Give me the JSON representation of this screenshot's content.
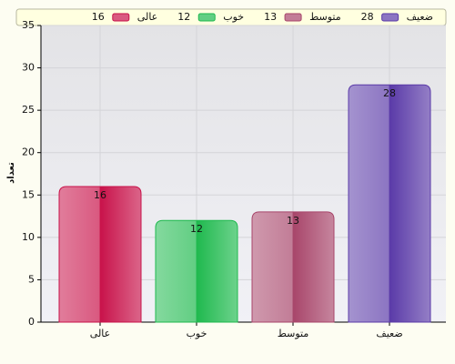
{
  "chart_data": {
    "type": "bar",
    "ylabel": "تعداد",
    "categories": [
      "عالی",
      "خوب",
      "متوسط",
      "ضعیف"
    ],
    "values": [
      16,
      12,
      13,
      28
    ],
    "colors": [
      "#c8124a",
      "#1fb94e",
      "#a8456a",
      "#5a3aa8"
    ],
    "ylim": [
      0,
      35
    ],
    "yticks": [
      0,
      5,
      10,
      15,
      20,
      25,
      30,
      35
    ],
    "grid": true
  }
}
